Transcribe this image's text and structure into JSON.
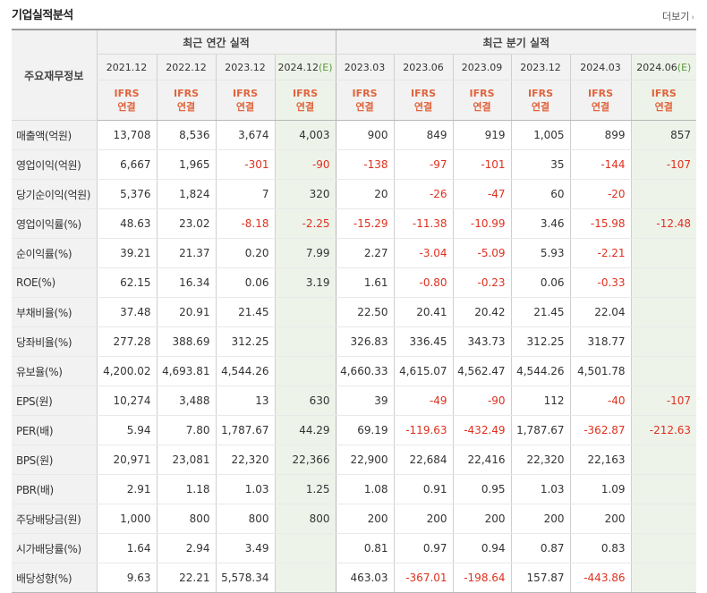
{
  "title": "기업실적분석",
  "more_label": "더보기",
  "header": {
    "row_label": "주요재무정보",
    "annual_group": "최근 연간 실적",
    "quarter_group": "최근 분기 실적",
    "periods": [
      "2021.12",
      "2022.12",
      "2023.12",
      "2024.12",
      "2023.03",
      "2023.06",
      "2023.09",
      "2023.12",
      "2024.03",
      "2024.06"
    ],
    "estimate_suffix": "(E)",
    "standard_line1": "IFRS",
    "standard_line2": "연결"
  },
  "rows": [
    {
      "label": "매출액(억원)",
      "values": [
        "13,708",
        "8,536",
        "3,674",
        "4,003",
        "900",
        "849",
        "919",
        "1,005",
        "899",
        "857"
      ]
    },
    {
      "label": "영업이익(억원)",
      "values": [
        "6,667",
        "1,965",
        "-301",
        "-90",
        "-138",
        "-97",
        "-101",
        "35",
        "-144",
        "-107"
      ]
    },
    {
      "label": "당기순이익(억원)",
      "values": [
        "5,376",
        "1,824",
        "7",
        "320",
        "20",
        "-26",
        "-47",
        "60",
        "-20",
        ""
      ]
    },
    {
      "label": "영업이익률(%)",
      "values": [
        "48.63",
        "23.02",
        "-8.18",
        "-2.25",
        "-15.29",
        "-11.38",
        "-10.99",
        "3.46",
        "-15.98",
        "-12.48"
      ]
    },
    {
      "label": "순이익률(%)",
      "values": [
        "39.21",
        "21.37",
        "0.20",
        "7.99",
        "2.27",
        "-3.04",
        "-5.09",
        "5.93",
        "-2.21",
        ""
      ]
    },
    {
      "label": "ROE(%)",
      "values": [
        "62.15",
        "16.34",
        "0.06",
        "3.19",
        "1.61",
        "-0.80",
        "-0.23",
        "0.06",
        "-0.33",
        ""
      ]
    },
    {
      "label": "부채비율(%)",
      "values": [
        "37.48",
        "20.91",
        "21.45",
        "",
        "22.50",
        "20.41",
        "20.42",
        "21.45",
        "22.04",
        ""
      ]
    },
    {
      "label": "당좌비율(%)",
      "values": [
        "277.28",
        "388.69",
        "312.25",
        "",
        "326.83",
        "336.45",
        "343.73",
        "312.25",
        "318.77",
        ""
      ]
    },
    {
      "label": "유보율(%)",
      "values": [
        "4,200.02",
        "4,693.81",
        "4,544.26",
        "",
        "4,660.33",
        "4,615.07",
        "4,562.47",
        "4,544.26",
        "4,501.78",
        ""
      ]
    },
    {
      "label": "EPS(원)",
      "values": [
        "10,274",
        "3,488",
        "13",
        "630",
        "39",
        "-49",
        "-90",
        "112",
        "-40",
        "-107"
      ]
    },
    {
      "label": "PER(배)",
      "values": [
        "5.94",
        "7.80",
        "1,787.67",
        "44.29",
        "69.19",
        "-119.63",
        "-432.49",
        "1,787.67",
        "-362.87",
        "-212.63"
      ]
    },
    {
      "label": "BPS(원)",
      "values": [
        "20,971",
        "23,081",
        "22,320",
        "22,366",
        "22,900",
        "22,684",
        "22,416",
        "22,320",
        "22,163",
        ""
      ]
    },
    {
      "label": "PBR(배)",
      "values": [
        "2.91",
        "1.18",
        "1.03",
        "1.25",
        "1.08",
        "0.91",
        "0.95",
        "1.03",
        "1.09",
        ""
      ]
    },
    {
      "label": "주당배당금(원)",
      "values": [
        "1,000",
        "800",
        "800",
        "800",
        "200",
        "200",
        "200",
        "200",
        "200",
        ""
      ]
    },
    {
      "label": "시가배당률(%)",
      "values": [
        "1.64",
        "2.94",
        "3.49",
        "",
        "0.81",
        "0.97",
        "0.94",
        "0.87",
        "0.83",
        ""
      ]
    },
    {
      "label": "배당성향(%)",
      "values": [
        "9.63",
        "22.21",
        "5,578.34",
        "",
        "463.03",
        "-367.01",
        "-198.64",
        "157.87",
        "-443.86",
        ""
      ]
    }
  ],
  "colors": {
    "header_bg": "#f2f2f2",
    "estimate_bg": "#eef3ea",
    "negative": "#e0301e",
    "ifrs_label": "#e0643c",
    "estimate_mark": "#5a9a3a"
  }
}
